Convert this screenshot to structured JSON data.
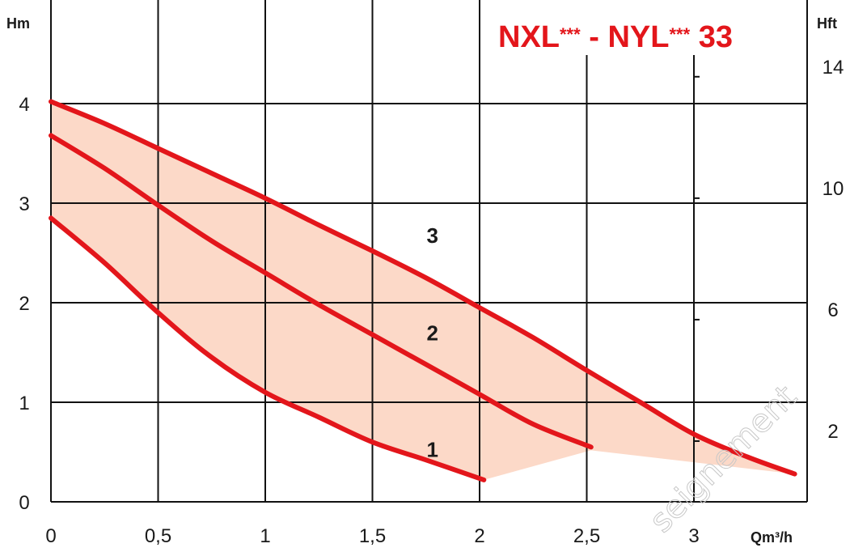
{
  "chart_data": {
    "type": "line",
    "title": {
      "part1": "NXL",
      "stars1": "***",
      "mid": " - NYL",
      "stars2": "***",
      "part2": " 33"
    },
    "xlabel": "Qm³/h",
    "ylabel_left": "Hm",
    "ylabel_right": "Hft",
    "xlim": [
      0,
      3.5
    ],
    "ylim": [
      0,
      4.8
    ],
    "x_ticks": [
      {
        "value": 0,
        "label": "0"
      },
      {
        "value": 0.5,
        "label": "0,5"
      },
      {
        "value": 1,
        "label": "1"
      },
      {
        "value": 1.5,
        "label": "1,5"
      },
      {
        "value": 2,
        "label": "2"
      },
      {
        "value": 2.5,
        "label": "2,5"
      },
      {
        "value": 3,
        "label": "3"
      }
    ],
    "y_ticks_left": [
      {
        "value": 0,
        "label": "0"
      },
      {
        "value": 1,
        "label": "1"
      },
      {
        "value": 2,
        "label": "2"
      },
      {
        "value": 3,
        "label": "3"
      },
      {
        "value": 4,
        "label": "4"
      }
    ],
    "y_ticks_right": [
      {
        "value": 0.61,
        "label": "2"
      },
      {
        "value": 1.83,
        "label": "6"
      },
      {
        "value": 3.05,
        "label": "10"
      },
      {
        "value": 4.27,
        "label": "14"
      }
    ],
    "grid": true,
    "series": [
      {
        "name": "1",
        "color": "#e3161b",
        "points": [
          [
            0,
            2.85
          ],
          [
            0.25,
            2.4
          ],
          [
            0.5,
            1.9
          ],
          [
            0.75,
            1.45
          ],
          [
            1,
            1.1
          ],
          [
            1.25,
            0.85
          ],
          [
            1.5,
            0.6
          ],
          [
            1.75,
            0.42
          ],
          [
            2.02,
            0.22
          ]
        ]
      },
      {
        "name": "2",
        "color": "#e3161b",
        "points": [
          [
            0,
            3.68
          ],
          [
            0.25,
            3.35
          ],
          [
            0.5,
            2.98
          ],
          [
            0.75,
            2.62
          ],
          [
            1,
            2.3
          ],
          [
            1.25,
            1.98
          ],
          [
            1.5,
            1.68
          ],
          [
            1.75,
            1.38
          ],
          [
            2,
            1.08
          ],
          [
            2.25,
            0.78
          ],
          [
            2.52,
            0.55
          ]
        ]
      },
      {
        "name": "3",
        "color": "#e3161b",
        "points": [
          [
            0,
            4.02
          ],
          [
            0.25,
            3.8
          ],
          [
            0.5,
            3.55
          ],
          [
            0.75,
            3.3
          ],
          [
            1,
            3.05
          ],
          [
            1.25,
            2.78
          ],
          [
            1.5,
            2.52
          ],
          [
            1.75,
            2.25
          ],
          [
            2,
            1.95
          ],
          [
            2.25,
            1.65
          ],
          [
            2.5,
            1.32
          ],
          [
            2.75,
            1.0
          ],
          [
            3,
            0.68
          ],
          [
            3.25,
            0.45
          ],
          [
            3.47,
            0.28
          ]
        ]
      }
    ],
    "fill_color": "#fcd9c8",
    "curve_labels": [
      {
        "text": "3",
        "x": 1.78,
        "y": 2.6
      },
      {
        "text": "2",
        "x": 1.78,
        "y": 1.62
      },
      {
        "text": "1",
        "x": 1.78,
        "y": 0.45
      }
    ],
    "watermark": "seignement"
  }
}
